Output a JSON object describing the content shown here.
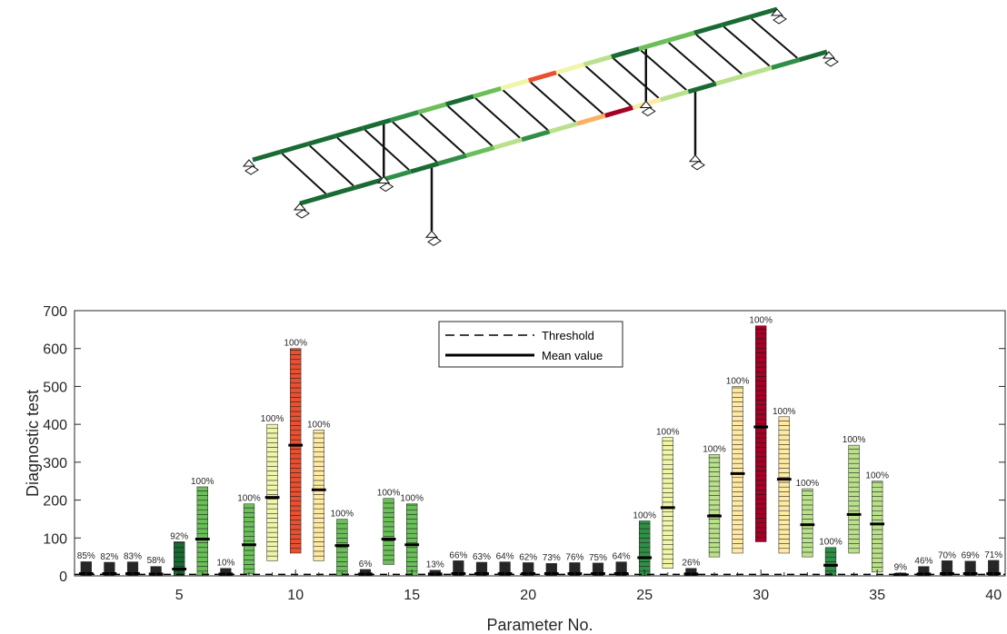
{
  "chart_data": {
    "type": "bar",
    "xlabel": "Parameter No.",
    "ylabel": "Diagnostic test",
    "xlim": [
      0.5,
      40.5
    ],
    "ylim": [
      0,
      700
    ],
    "xticks": [
      5,
      10,
      15,
      20,
      25,
      30,
      35,
      40
    ],
    "yticks": [
      0,
      100,
      200,
      300,
      400,
      500,
      600,
      700
    ],
    "threshold": 4,
    "legend": {
      "position": "top-center",
      "entries": [
        "Threshold",
        "Mean value"
      ]
    },
    "colormap": [
      "#1a6b33",
      "#2f8f46",
      "#6abf59",
      "#b9e08a",
      "#f0f5a8",
      "#ffe9a3",
      "#fbb062",
      "#e8502f",
      "#a50026"
    ],
    "parameters": [
      {
        "no": 1,
        "min": 0,
        "max": 38,
        "mean": 6,
        "percent": "85%"
      },
      {
        "no": 2,
        "min": 0,
        "max": 36,
        "mean": 6,
        "percent": "82%"
      },
      {
        "no": 3,
        "min": 0,
        "max": 37,
        "mean": 6,
        "percent": "83%"
      },
      {
        "no": 4,
        "min": 0,
        "max": 26,
        "mean": 5,
        "percent": "58%"
      },
      {
        "no": 5,
        "min": 0,
        "max": 90,
        "mean": 18,
        "percent": "92%"
      },
      {
        "no": 6,
        "min": 0,
        "max": 235,
        "mean": 97,
        "percent": "100%"
      },
      {
        "no": 7,
        "min": 0,
        "max": 20,
        "mean": 5,
        "percent": "10%"
      },
      {
        "no": 8,
        "min": 5,
        "max": 190,
        "mean": 82,
        "percent": "100%"
      },
      {
        "no": 9,
        "min": 40,
        "max": 400,
        "mean": 207,
        "percent": "100%"
      },
      {
        "no": 10,
        "min": 60,
        "max": 600,
        "mean": 345,
        "percent": "100%"
      },
      {
        "no": 11,
        "min": 40,
        "max": 385,
        "mean": 227,
        "percent": "100%"
      },
      {
        "no": 12,
        "min": 0,
        "max": 150,
        "mean": 80,
        "percent": "100%"
      },
      {
        "no": 13,
        "min": 0,
        "max": 17,
        "mean": 5,
        "percent": "6%"
      },
      {
        "no": 14,
        "min": 30,
        "max": 205,
        "mean": 97,
        "percent": "100%"
      },
      {
        "no": 15,
        "min": 0,
        "max": 190,
        "mean": 82,
        "percent": "100%"
      },
      {
        "no": 16,
        "min": 0,
        "max": 15,
        "mean": 5,
        "percent": "13%"
      },
      {
        "no": 17,
        "min": 0,
        "max": 40,
        "mean": 6,
        "percent": "66%"
      },
      {
        "no": 18,
        "min": 0,
        "max": 36,
        "mean": 6,
        "percent": "63%"
      },
      {
        "no": 19,
        "min": 0,
        "max": 37,
        "mean": 6,
        "percent": "64%"
      },
      {
        "no": 20,
        "min": 0,
        "max": 35,
        "mean": 6,
        "percent": "62%"
      },
      {
        "no": 21,
        "min": 0,
        "max": 33,
        "mean": 6,
        "percent": "73%"
      },
      {
        "no": 22,
        "min": 0,
        "max": 35,
        "mean": 6,
        "percent": "76%"
      },
      {
        "no": 23,
        "min": 0,
        "max": 34,
        "mean": 6,
        "percent": "75%"
      },
      {
        "no": 24,
        "min": 0,
        "max": 37,
        "mean": 6,
        "percent": "64%"
      },
      {
        "no": 25,
        "min": 0,
        "max": 145,
        "mean": 48,
        "percent": "100%"
      },
      {
        "no": 26,
        "min": 20,
        "max": 365,
        "mean": 180,
        "percent": "100%"
      },
      {
        "no": 27,
        "min": 0,
        "max": 20,
        "mean": 5,
        "percent": "26%"
      },
      {
        "no": 28,
        "min": 50,
        "max": 320,
        "mean": 158,
        "percent": "100%"
      },
      {
        "no": 29,
        "min": 60,
        "max": 500,
        "mean": 270,
        "percent": "100%"
      },
      {
        "no": 30,
        "min": 90,
        "max": 660,
        "mean": 393,
        "percent": "100%"
      },
      {
        "no": 31,
        "min": 60,
        "max": 420,
        "mean": 255,
        "percent": "100%"
      },
      {
        "no": 32,
        "min": 50,
        "max": 230,
        "mean": 135,
        "percent": "100%"
      },
      {
        "no": 33,
        "min": 0,
        "max": 75,
        "mean": 28,
        "percent": "100%"
      },
      {
        "no": 34,
        "min": 60,
        "max": 345,
        "mean": 162,
        "percent": "100%"
      },
      {
        "no": 35,
        "min": 10,
        "max": 250,
        "mean": 137,
        "percent": "100%"
      },
      {
        "no": 36,
        "min": 0,
        "max": 8,
        "mean": 3,
        "percent": "9%"
      },
      {
        "no": 37,
        "min": 0,
        "max": 25,
        "mean": 5,
        "percent": "46%"
      },
      {
        "no": 38,
        "min": 0,
        "max": 40,
        "mean": 6,
        "percent": "70%"
      },
      {
        "no": 39,
        "min": 0,
        "max": 39,
        "mean": 6,
        "percent": "69%"
      },
      {
        "no": 40,
        "min": 0,
        "max": 41,
        "mean": 6,
        "percent": "71%"
      }
    ]
  }
}
